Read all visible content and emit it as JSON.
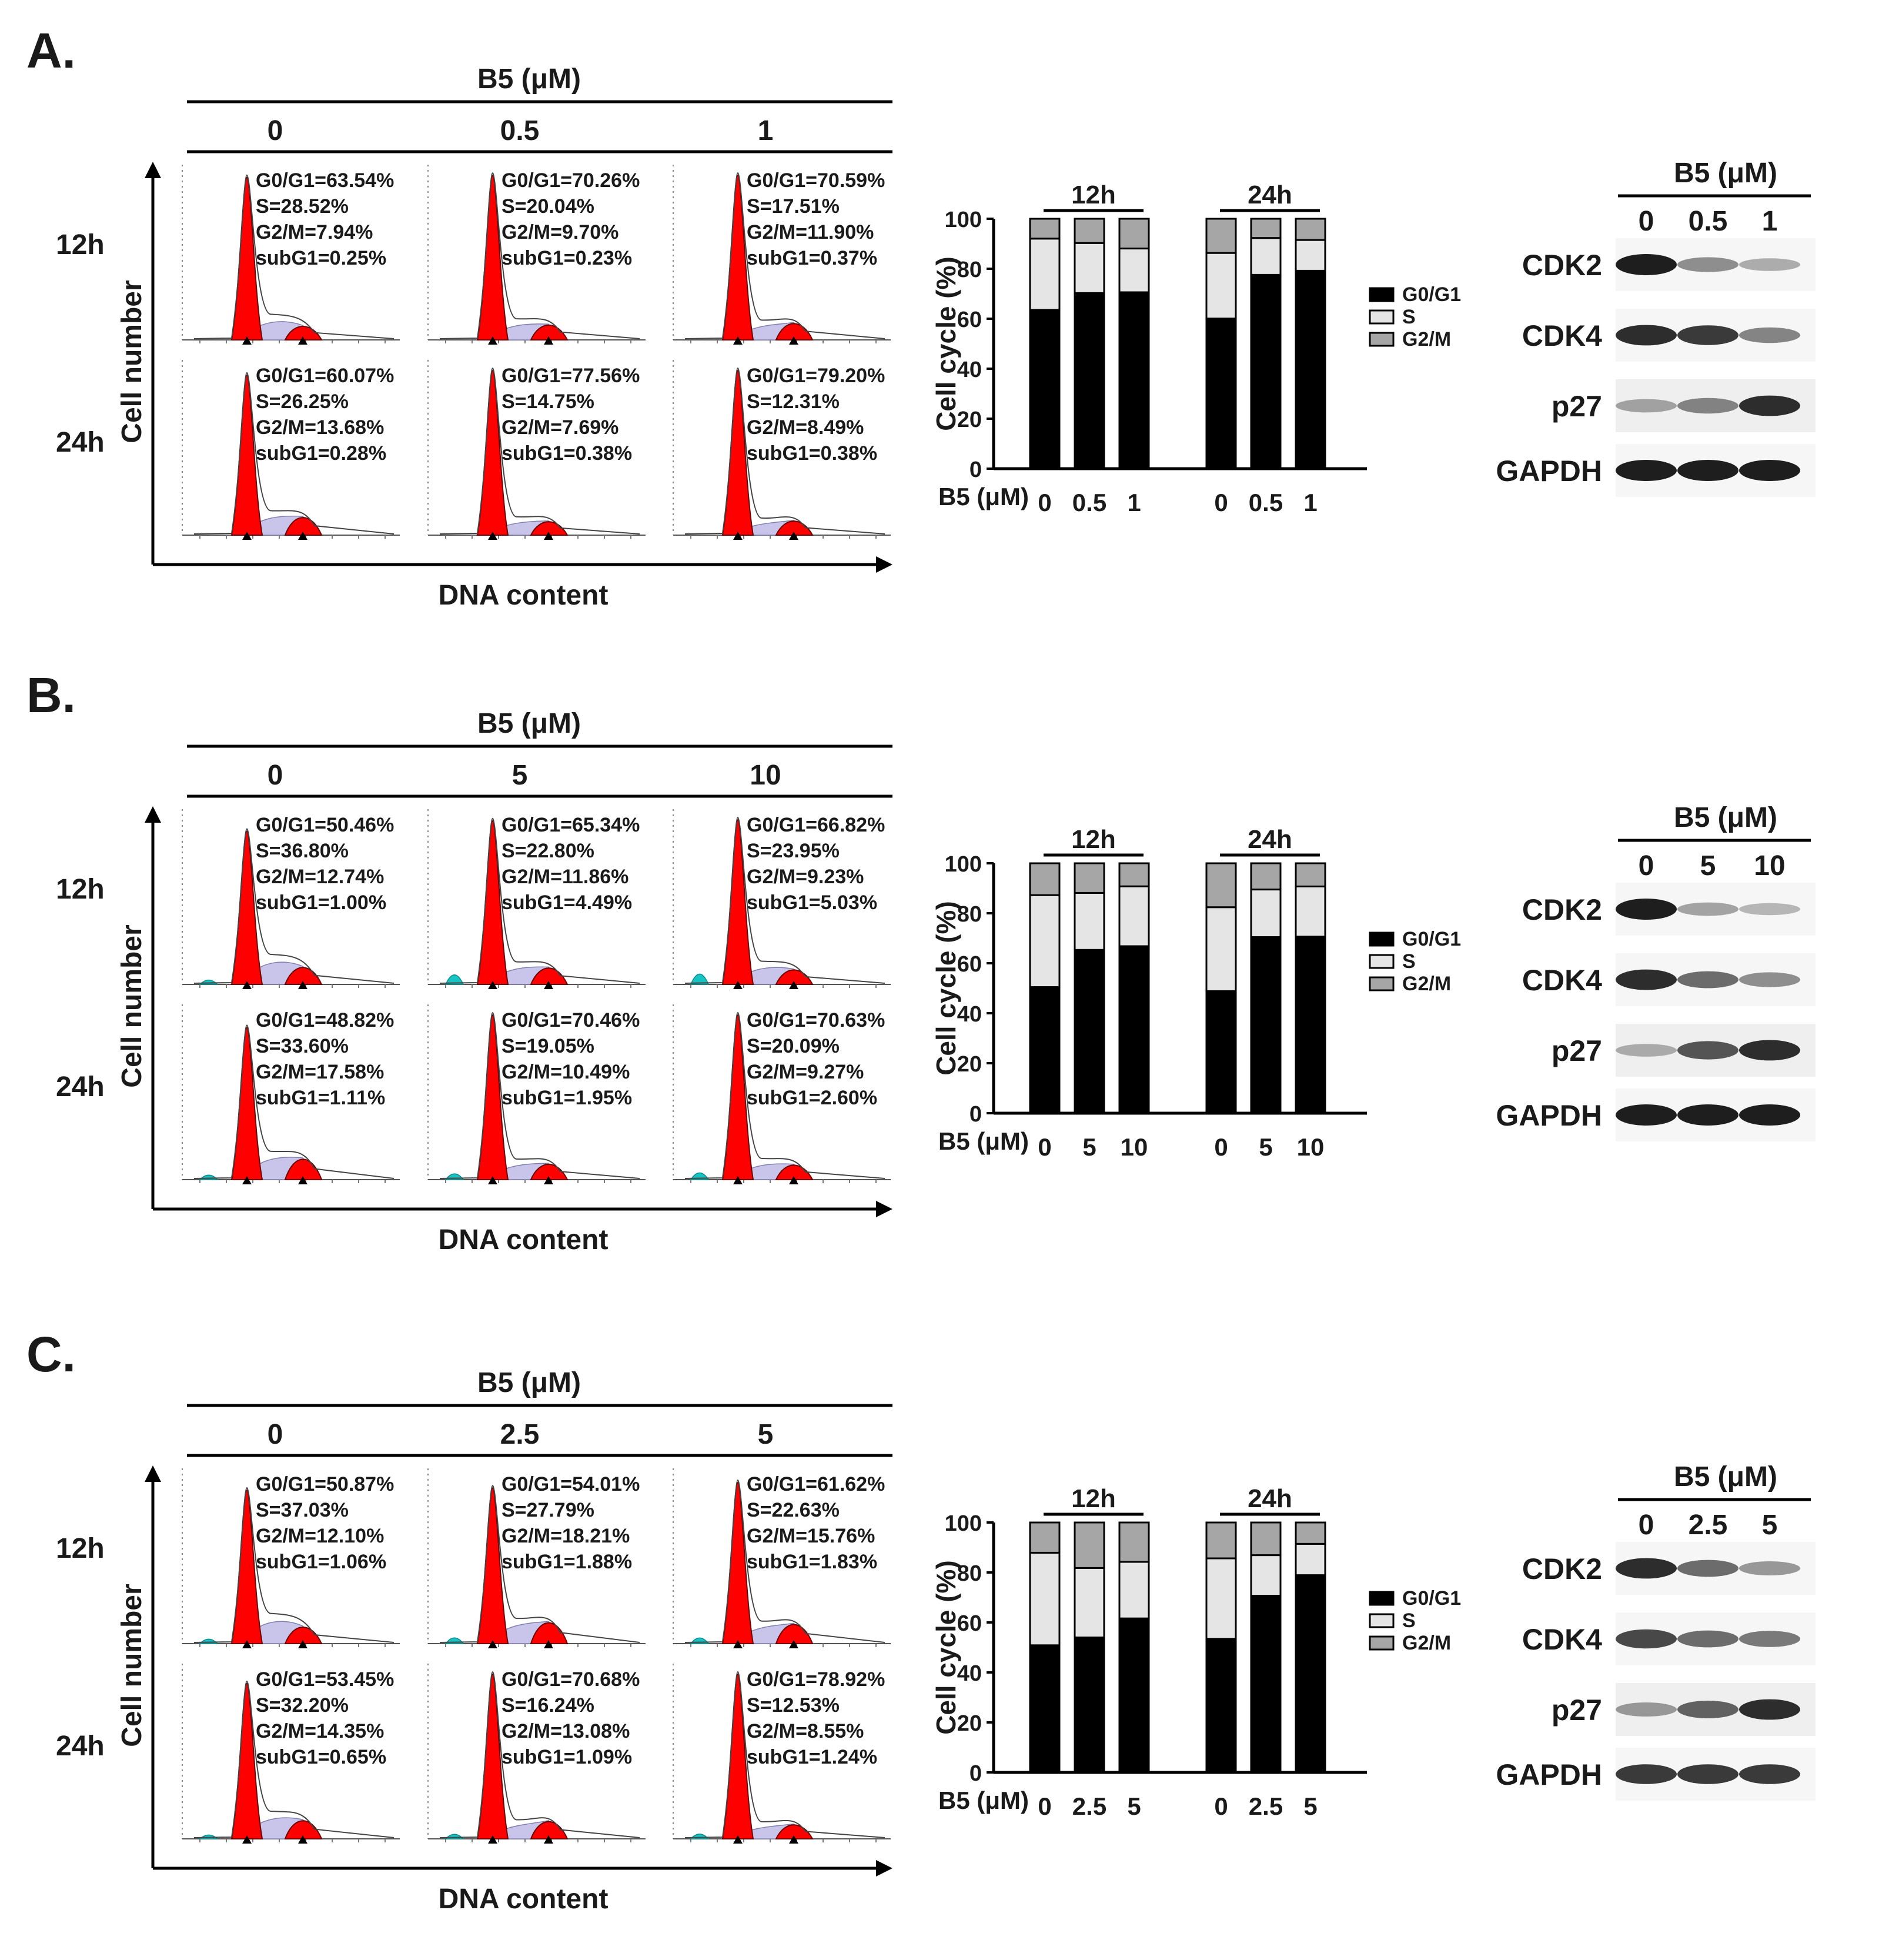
{
  "panels": [
    {
      "letter": "A.",
      "flow": {
        "header": "B5 (μM)",
        "doses": [
          "0",
          "0.5",
          "1"
        ],
        "rows": [
          "12h",
          "24h"
        ],
        "ylabel": "Cell number",
        "xlabel": "DNA content",
        "stats": [
          [
            [
              "G0/G1=63.54%",
              "S=28.52%",
              "G2/M=7.94%",
              "subG1=0.25%"
            ],
            [
              "G0/G1=70.26%",
              "S=20.04%",
              "G2/M=9.70%",
              "subG1=0.23%"
            ],
            [
              "G0/G1=70.59%",
              "S=17.51%",
              "G2/M=11.90%",
              "subG1=0.37%"
            ]
          ],
          [
            [
              "G0/G1=60.07%",
              "S=26.25%",
              "G2/M=13.68%",
              "subG1=0.28%"
            ],
            [
              "G0/G1=77.56%",
              "S=14.75%",
              "G2/M=7.69%",
              "subG1=0.38%"
            ],
            [
              "G0/G1=79.20%",
              "S=12.31%",
              "G2/M=8.49%",
              "subG1=0.38%"
            ]
          ]
        ]
      },
      "blot": {
        "header": "B5 (μM)",
        "doses": [
          "0",
          "0.5",
          "1"
        ],
        "proteins": [
          "CDK2",
          "CDK4",
          "p27",
          "GAPDH"
        ],
        "intensity": [
          [
            1.0,
            0.55,
            0.4
          ],
          [
            0.95,
            0.9,
            0.6
          ],
          [
            0.45,
            0.6,
            0.95
          ],
          [
            1.0,
            1.0,
            1.0
          ]
        ]
      }
    },
    {
      "letter": "B.",
      "flow": {
        "header": "B5 (μM)",
        "doses": [
          "0",
          "5",
          "10"
        ],
        "rows": [
          "12h",
          "24h"
        ],
        "ylabel": "Cell number",
        "xlabel": "DNA content",
        "stats": [
          [
            [
              "G0/G1=50.46%",
              "S=36.80%",
              "G2/M=12.74%",
              "subG1=1.00%"
            ],
            [
              "G0/G1=65.34%",
              "S=22.80%",
              "G2/M=11.86%",
              "subG1=4.49%"
            ],
            [
              "G0/G1=66.82%",
              "S=23.95%",
              "G2/M=9.23%",
              "subG1=5.03%"
            ]
          ],
          [
            [
              "G0/G1=48.82%",
              "S=33.60%",
              "G2/M=17.58%",
              "subG1=1.11%"
            ],
            [
              "G0/G1=70.46%",
              "S=19.05%",
              "G2/M=10.49%",
              "subG1=1.95%"
            ],
            [
              "G0/G1=70.63%",
              "S=20.09%",
              "G2/M=9.27%",
              "subG1=2.60%"
            ]
          ]
        ]
      },
      "blot": {
        "header": "B5 (μM)",
        "doses": [
          "0",
          "5",
          "10"
        ],
        "proteins": [
          "CDK2",
          "CDK4",
          "p27",
          "GAPDH"
        ],
        "intensity": [
          [
            1.0,
            0.45,
            0.35
          ],
          [
            0.95,
            0.7,
            0.55
          ],
          [
            0.4,
            0.8,
            0.95
          ],
          [
            1.0,
            1.0,
            1.0
          ]
        ]
      }
    },
    {
      "letter": "C.",
      "flow": {
        "header": "B5 (μM)",
        "doses": [
          "0",
          "2.5",
          "5"
        ],
        "rows": [
          "12h",
          "24h"
        ],
        "ylabel": "Cell number",
        "xlabel": "DNA content",
        "stats": [
          [
            [
              "G0/G1=50.87%",
              "S=37.03%",
              "G2/M=12.10%",
              "subG1=1.06%"
            ],
            [
              "G0/G1=54.01%",
              "S=27.79%",
              "G2/M=18.21%",
              "subG1=1.88%"
            ],
            [
              "G0/G1=61.62%",
              "S=22.63%",
              "G2/M=15.76%",
              "subG1=1.83%"
            ]
          ],
          [
            [
              "G0/G1=53.45%",
              "S=32.20%",
              "G2/M=14.35%",
              "subG1=0.65%"
            ],
            [
              "G0/G1=70.68%",
              "S=16.24%",
              "G2/M=13.08%",
              "subG1=1.09%"
            ],
            [
              "G0/G1=78.92%",
              "S=12.53%",
              "G2/M=8.55%",
              "subG1=1.24%"
            ]
          ]
        ]
      },
      "blot": {
        "header": "B5 (μM)",
        "doses": [
          "0",
          "2.5",
          "5"
        ],
        "proteins": [
          "CDK2",
          "CDK4",
          "p27",
          "GAPDH"
        ],
        "intensity": [
          [
            0.95,
            0.7,
            0.5
          ],
          [
            0.85,
            0.7,
            0.65
          ],
          [
            0.5,
            0.75,
            0.95
          ],
          [
            0.9,
            0.9,
            0.9
          ]
        ]
      }
    }
  ],
  "legend": [
    "G0/G1",
    "S",
    "G2/M"
  ],
  "colors": {
    "g0g1": "#000000",
    "s": "#e5e5e5",
    "g2m": "#a6a6a6",
    "peak": "#ff0000",
    "sphase": "#c9c5ea",
    "subg1": "#17c4c4"
  },
  "chart_data": [
    {
      "type": "bar",
      "stacked": true,
      "title": "",
      "ylabel": "Cell cycle (%)",
      "xlabel": "B5 (μM)",
      "ylim": [
        0,
        100
      ],
      "yticks": [
        "0",
        "20",
        "40",
        "60",
        "80",
        "100"
      ],
      "groups": [
        "12h",
        "24h"
      ],
      "categories": [
        "0",
        "0.5",
        "1",
        "0",
        "0.5",
        "1"
      ],
      "series": [
        {
          "name": "G0/G1",
          "values": [
            63.54,
            70.26,
            70.59,
            60.07,
            77.56,
            79.2
          ]
        },
        {
          "name": "S",
          "values": [
            28.52,
            20.04,
            17.51,
            26.25,
            14.75,
            12.31
          ]
        },
        {
          "name": "G2/M",
          "values": [
            7.94,
            9.7,
            11.9,
            13.68,
            7.69,
            8.49
          ]
        }
      ]
    },
    {
      "type": "bar",
      "stacked": true,
      "title": "",
      "ylabel": "Cell cycle (%)",
      "xlabel": "B5 (μM)",
      "ylim": [
        0,
        100
      ],
      "yticks": [
        "0",
        "20",
        "40",
        "60",
        "80",
        "100"
      ],
      "groups": [
        "12h",
        "24h"
      ],
      "categories": [
        "0",
        "5",
        "10",
        "0",
        "5",
        "10"
      ],
      "series": [
        {
          "name": "G0/G1",
          "values": [
            50.46,
            65.34,
            66.82,
            48.82,
            70.46,
            70.63
          ]
        },
        {
          "name": "S",
          "values": [
            36.8,
            22.8,
            23.95,
            33.6,
            19.05,
            20.09
          ]
        },
        {
          "name": "G2/M",
          "values": [
            12.74,
            11.86,
            9.23,
            17.58,
            10.49,
            9.27
          ]
        }
      ]
    },
    {
      "type": "bar",
      "stacked": true,
      "title": "",
      "ylabel": "Cell cycle (%)",
      "xlabel": "B5 (μM)",
      "ylim": [
        0,
        100
      ],
      "yticks": [
        "0",
        "20",
        "40",
        "60",
        "80",
        "100"
      ],
      "groups": [
        "12h",
        "24h"
      ],
      "categories": [
        "0",
        "2.5",
        "5",
        "0",
        "2.5",
        "5"
      ],
      "series": [
        {
          "name": "G0/G1",
          "values": [
            50.87,
            54.01,
            61.62,
            53.45,
            70.68,
            78.92
          ]
        },
        {
          "name": "S",
          "values": [
            37.03,
            27.79,
            22.63,
            32.2,
            16.24,
            12.53
          ]
        },
        {
          "name": "G2/M",
          "values": [
            12.1,
            18.21,
            15.76,
            14.35,
            13.08,
            8.55
          ]
        }
      ]
    }
  ]
}
